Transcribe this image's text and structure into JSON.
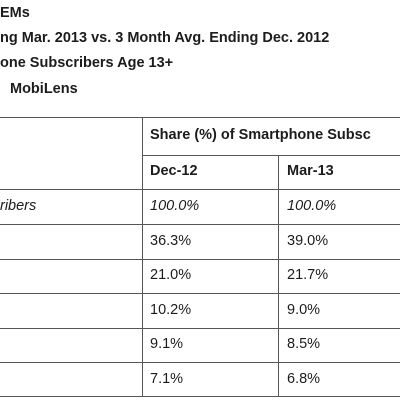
{
  "header": {
    "line1": "EMs",
    "line2": "ng Mar. 2013 vs. 3 Month Avg. Ending Dec. 2012",
    "line3": "one Subscribers Age 13+",
    "line4": "MobiLens"
  },
  "table": {
    "group_heading": "Share (%) of Smartphone Subsc",
    "columns": [
      "Dec-12",
      "Mar-13"
    ],
    "rows": [
      {
        "label": "ribers",
        "dec12": "100.0%",
        "mar13": "100.0%"
      },
      {
        "label": "",
        "dec12": "36.3%",
        "mar13": "39.0%"
      },
      {
        "label": "",
        "dec12": "21.0%",
        "mar13": "21.7%"
      },
      {
        "label": "",
        "dec12": "10.2%",
        "mar13": "9.0%"
      },
      {
        "label": "",
        "dec12": "9.1%",
        "mar13": "8.5%"
      },
      {
        "label": "",
        "dec12": "7.1%",
        "mar13": "6.8%"
      }
    ]
  }
}
